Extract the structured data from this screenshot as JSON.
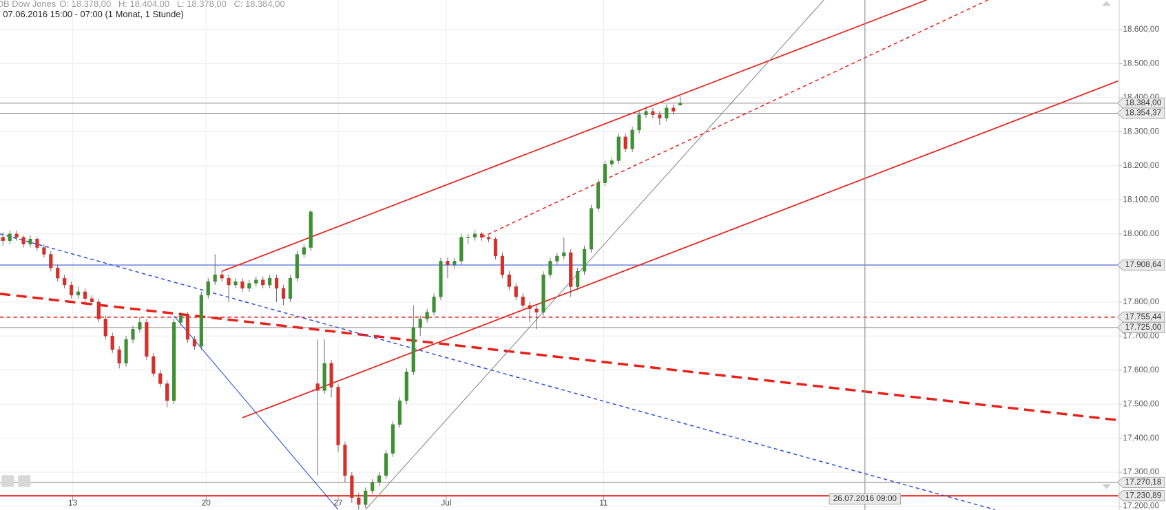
{
  "chart_data": {
    "type": "candlestick",
    "instrument": "DB Dow Jones",
    "header_values": [
      "O: 18.378,00",
      "H: 18.404,00",
      "L: 18.378,00",
      "C: 18.384,00"
    ],
    "subtitle": "07.06.2016 15:00 - 07:00 (1 Monat, 1 Stunde)",
    "up_color": "#3f8f34",
    "down_color": "#d4312b",
    "xlim": [
      -0.43,
      163.16
    ],
    "xticks": [
      {
        "value": 10.2,
        "label": "13"
      },
      {
        "value": 29.7,
        "label": "20"
      },
      {
        "value": 49,
        "label": "27"
      },
      {
        "value": 64.8,
        "label": "Jul"
      },
      {
        "value": 87.8,
        "label": "11"
      }
    ],
    "ylim": [
      17189,
      18687
    ],
    "yticks": [
      {
        "value": 17200,
        "label": "17.200,00"
      },
      {
        "value": 17300,
        "label": "17.300,00"
      },
      {
        "value": 17400,
        "label": "17.400,00"
      },
      {
        "value": 17500,
        "label": "17.500,00"
      },
      {
        "value": 17600,
        "label": "17.600,00"
      },
      {
        "value": 17700,
        "label": "17.700,00"
      },
      {
        "value": 17800,
        "label": "17.800,00"
      },
      {
        "value": 17900,
        "label": "17.900,00"
      },
      {
        "value": 18000,
        "label": "18.000,00"
      },
      {
        "value": 18100,
        "label": "18.100,00"
      },
      {
        "value": 18200,
        "label": "18.200,00"
      },
      {
        "value": 18300,
        "label": "18.300,00"
      },
      {
        "value": 18400,
        "label": "18.400,00"
      },
      {
        "value": 18500,
        "label": "18.500,00"
      },
      {
        "value": 18600,
        "label": "18.600,00"
      }
    ],
    "grid": true,
    "ohlc": [
      [
        17990,
        18005,
        17965,
        17980
      ],
      [
        17980,
        18010,
        17970,
        18000
      ],
      [
        18000,
        18010,
        17980,
        17990
      ],
      [
        17990,
        17995,
        17960,
        17970
      ],
      [
        17970,
        17995,
        17960,
        17985
      ],
      [
        17985,
        17990,
        17950,
        17960
      ],
      [
        17960,
        17970,
        17930,
        17940
      ],
      [
        17940,
        17950,
        17890,
        17900
      ],
      [
        17900,
        17910,
        17860,
        17870
      ],
      [
        17870,
        17880,
        17840,
        17850
      ],
      [
        17850,
        17860,
        17810,
        17820
      ],
      [
        17820,
        17845,
        17810,
        17830
      ],
      [
        17830,
        17840,
        17800,
        17810
      ],
      [
        17810,
        17820,
        17790,
        17800
      ],
      [
        17800,
        17810,
        17740,
        17750
      ],
      [
        17750,
        17760,
        17690,
        17700
      ],
      [
        17700,
        17710,
        17650,
        17660
      ],
      [
        17660,
        17670,
        17605,
        17620
      ],
      [
        17620,
        17700,
        17610,
        17690
      ],
      [
        17690,
        17730,
        17680,
        17720
      ],
      [
        17720,
        17755,
        17710,
        17740
      ],
      [
        17740,
        17750,
        17630,
        17640
      ],
      [
        17640,
        17650,
        17580,
        17590
      ],
      [
        17590,
        17600,
        17550,
        17560
      ],
      [
        17560,
        17570,
        17490,
        17510
      ],
      [
        17510,
        17750,
        17500,
        17740
      ],
      [
        17740,
        17770,
        17730,
        17760
      ],
      [
        17760,
        17770,
        17680,
        17690
      ],
      [
        17690,
        17700,
        17660,
        17670
      ],
      [
        17670,
        17830,
        17660,
        17820
      ],
      [
        17820,
        17870,
        17810,
        17860
      ],
      [
        17860,
        17940,
        17850,
        17880
      ],
      [
        17880,
        17890,
        17860,
        17870
      ],
      [
        17870,
        17880,
        17800,
        17850
      ],
      [
        17850,
        17870,
        17840,
        17860
      ],
      [
        17860,
        17870,
        17830,
        17840
      ],
      [
        17840,
        17865,
        17830,
        17855
      ],
      [
        17855,
        17875,
        17845,
        17865
      ],
      [
        17865,
        17875,
        17840,
        17850
      ],
      [
        17850,
        17880,
        17840,
        17870
      ],
      [
        17870,
        17880,
        17800,
        17840
      ],
      [
        17840,
        17850,
        17790,
        17810
      ],
      [
        17810,
        17880,
        17800,
        17870
      ],
      [
        17870,
        17950,
        17860,
        17940
      ],
      [
        17940,
        17970,
        17930,
        17960
      ],
      [
        17960,
        18070,
        17950,
        18065
      ],
      [
        17560,
        17690,
        17290,
        17540
      ],
      [
        17540,
        17690,
        17530,
        17620
      ],
      [
        17620,
        17630,
        17520,
        17550
      ],
      [
        17550,
        17560,
        17360,
        17380
      ],
      [
        17380,
        17390,
        17270,
        17290
      ],
      [
        17290,
        17300,
        17210,
        17225
      ],
      [
        17225,
        17240,
        17190,
        17205
      ],
      [
        17205,
        17255,
        17195,
        17245
      ],
      [
        17245,
        17280,
        17235,
        17270
      ],
      [
        17270,
        17300,
        17260,
        17290
      ],
      [
        17290,
        17365,
        17280,
        17355
      ],
      [
        17355,
        17450,
        17345,
        17440
      ],
      [
        17440,
        17520,
        17430,
        17510
      ],
      [
        17510,
        17605,
        17500,
        17595
      ],
      [
        17595,
        17790,
        17585,
        17725
      ],
      [
        17725,
        17760,
        17700,
        17750
      ],
      [
        17750,
        17780,
        17740,
        17770
      ],
      [
        17770,
        17825,
        17760,
        17815
      ],
      [
        17815,
        17930,
        17805,
        17920
      ],
      [
        17920,
        17930,
        17870,
        17910
      ],
      [
        17910,
        17930,
        17900,
        17920
      ],
      [
        17920,
        18000,
        17910,
        17990
      ],
      [
        17990,
        18000,
        17970,
        17990
      ],
      [
        17990,
        18010,
        17980,
        18000
      ],
      [
        18000,
        18005,
        17980,
        17990
      ],
      [
        17990,
        17995,
        17975,
        17985
      ],
      [
        17985,
        17990,
        17925,
        17935
      ],
      [
        17935,
        17945,
        17870,
        17880
      ],
      [
        17880,
        17890,
        17835,
        17845
      ],
      [
        17845,
        17855,
        17805,
        17815
      ],
      [
        17815,
        17825,
        17780,
        17790
      ],
      [
        17790,
        17800,
        17740,
        17780
      ],
      [
        17780,
        17790,
        17720,
        17770
      ],
      [
        17770,
        17890,
        17760,
        17880
      ],
      [
        17880,
        17930,
        17870,
        17920
      ],
      [
        17920,
        17945,
        17910,
        17935
      ],
      [
        17935,
        17990,
        17925,
        17945
      ],
      [
        17945,
        17955,
        17815,
        17845
      ],
      [
        17845,
        17900,
        17835,
        17890
      ],
      [
        17890,
        17965,
        17880,
        17955
      ],
      [
        17955,
        18085,
        17945,
        18075
      ],
      [
        18075,
        18160,
        18065,
        18150
      ],
      [
        18150,
        18215,
        18140,
        18205
      ],
      [
        18205,
        18225,
        18195,
        18215
      ],
      [
        18215,
        18295,
        18205,
        18285
      ],
      [
        18285,
        18295,
        18240,
        18250
      ],
      [
        18250,
        18315,
        18240,
        18305
      ],
      [
        18305,
        18360,
        18295,
        18350
      ],
      [
        18350,
        18375,
        18340,
        18360
      ],
      [
        18360,
        18370,
        18340,
        18350
      ],
      [
        18350,
        18360,
        18320,
        18340
      ],
      [
        18340,
        18380,
        18330,
        18370
      ],
      [
        18370,
        18380,
        18350,
        18360
      ],
      [
        18378,
        18404,
        18378,
        18384
      ]
    ],
    "levels": [
      {
        "value": 18384,
        "label": "18.384,00",
        "color": "#8a8a8a",
        "style": "solid"
      },
      {
        "value": 18354.37,
        "label": "18.354,37",
        "color": "#8a8a8a",
        "style": "solid"
      },
      {
        "value": 17908.64,
        "label": "17.908,64",
        "color": "#3a56d4",
        "style": "solid"
      },
      {
        "value": 17755.44,
        "label": "17.755,44",
        "color": "#e8201a",
        "style": "dashed"
      },
      {
        "value": 17725,
        "label": "17.725,00",
        "color": "#8a8a8a",
        "style": "solid"
      },
      {
        "value": 17270.18,
        "label": "17.270,18",
        "color": "#8a8a8a",
        "style": "solid"
      },
      {
        "value": 17230.89,
        "label": "17.230,89",
        "color": "#e8201a",
        "style": "thick"
      }
    ],
    "trendlines": [
      {
        "color": "#e8201a",
        "style": "solid",
        "x": [
          32,
          135
        ],
        "y": [
          17890,
          18687
        ]
      },
      {
        "color": "#e8201a",
        "style": "dashed",
        "x": [
          70,
          144
        ],
        "y": [
          17990,
          18687
        ]
      },
      {
        "color": "#e8201a",
        "style": "solid",
        "x": [
          35,
          163
        ],
        "y": [
          17460,
          18449
        ]
      },
      {
        "color": "#e8201a",
        "style": "thickdash",
        "x": [
          -0.43,
          163
        ],
        "y": [
          17824,
          17453
        ]
      },
      {
        "color": "#2d4fd6",
        "style": "dashed",
        "x": [
          -0.43,
          145
        ],
        "y": [
          18000,
          17190
        ]
      },
      {
        "color": "#2d4fd6",
        "style": "thin",
        "x": [
          25,
          49
        ],
        "y": [
          17759,
          17190
        ]
      },
      {
        "color": "#8a8a8a",
        "style": "thin",
        "x": [
          53,
          120
        ],
        "y": [
          17190,
          18687
        ]
      }
    ],
    "marker": {
      "x": 126,
      "label": "26.07.2016 09:00"
    }
  }
}
